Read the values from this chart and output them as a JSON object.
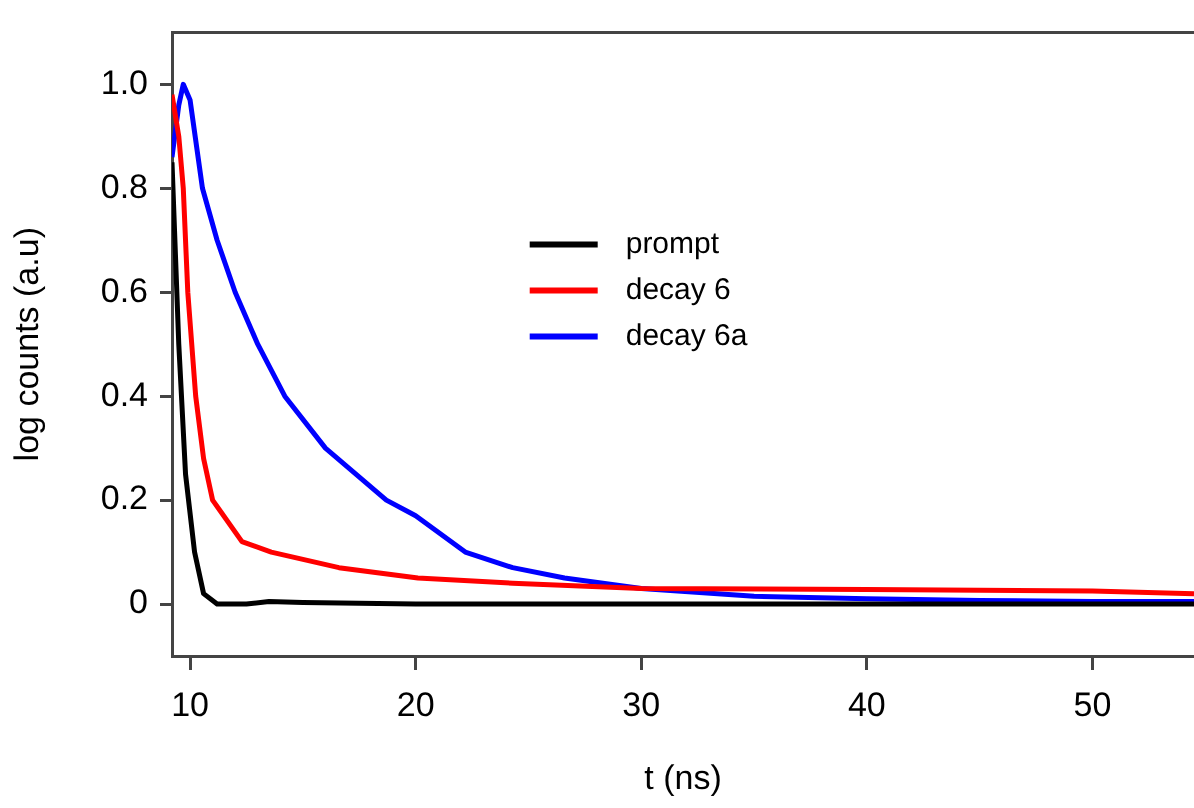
{
  "chart_data": {
    "type": "line",
    "xlabel": "t (ns)",
    "ylabel": "log counts (a.u)",
    "xlim": [
      9.2,
      54.5
    ],
    "ylim": [
      -0.1,
      1.1
    ],
    "xticks": [
      10,
      20,
      30,
      40,
      50
    ],
    "yticks": [
      0,
      {
        "value": 0.2,
        "label": "0.2"
      },
      {
        "value": 0.4,
        "label": "0.4"
      },
      {
        "value": 0.6,
        "label": "0.6"
      },
      {
        "value": 0.8,
        "label": "0.8"
      },
      {
        "value": 1,
        "label": "1.0"
      }
    ],
    "grid": false,
    "legend": "top",
    "marker": "none",
    "line_style": "solid",
    "series": [
      {
        "name": "prompt",
        "color": "#000000",
        "x": [
          9.2,
          9.5,
          9.8,
          10.2,
          10.6,
          11.2,
          12.5,
          13.5,
          15,
          20,
          54.5
        ],
        "values": [
          0.85,
          0.5,
          0.25,
          0.1,
          0.02,
          0,
          0,
          0.005,
          0.003,
          0,
          0
        ]
      },
      {
        "name": "decay 6",
        "color": "#ff0000",
        "x": [
          9.2,
          9.5,
          9.7,
          9.9,
          10.25,
          10.6,
          11,
          12.3,
          13.6,
          16.6,
          20.1,
          24.3,
          30,
          40,
          50,
          54.5
        ],
        "values": [
          0.98,
          0.9,
          0.8,
          0.6,
          0.4,
          0.28,
          0.2,
          0.12,
          0.1,
          0.07,
          0.05,
          0.04,
          0.03,
          0.028,
          0.025,
          0.02
        ]
      },
      {
        "name": "decay 6a",
        "color": "#0000ff",
        "x": [
          9.2,
          9.5,
          9.7,
          10,
          10.55,
          11.2,
          12,
          13,
          14.2,
          16,
          18.7,
          20,
          22.2,
          24.3,
          26.6,
          30,
          35,
          40,
          45,
          50,
          54.5
        ],
        "values": [
          0.86,
          0.96,
          1,
          0.97,
          0.8,
          0.7,
          0.6,
          0.5,
          0.4,
          0.3,
          0.2,
          0.17,
          0.1,
          0.07,
          0.05,
          0.03,
          0.015,
          0.01,
          0.007,
          0.005,
          0.005
        ]
      }
    ]
  }
}
